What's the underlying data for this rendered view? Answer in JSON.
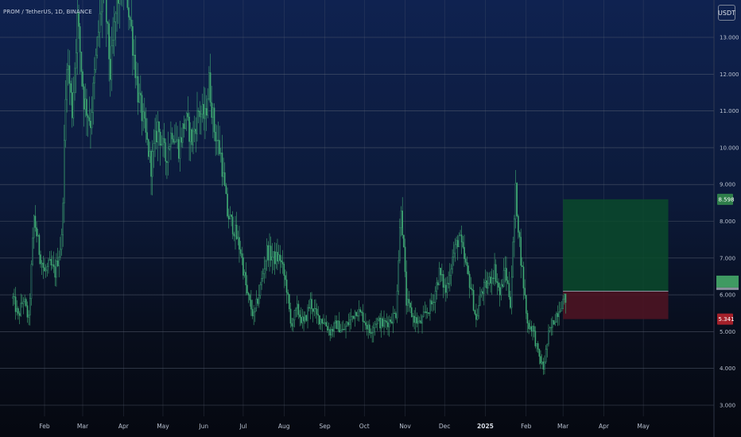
{
  "title": "PROM / TetherUS, 1D, BINANCE",
  "currency_button": "USDT",
  "colors": {
    "candle": "#3fa873",
    "grid": "#5e6677",
    "target_zone": "#0b4a2c",
    "stop_zone": "#4c1422",
    "target_badge": "#2e7d4a",
    "stop_badge": "#a3202a"
  },
  "chart_data": {
    "type": "candlestick",
    "y_axis": {
      "ticks": [
        "3.000",
        "4.000",
        "5.000",
        "6.000",
        "7.000",
        "8.000",
        "9.000",
        "10.000",
        "11.000",
        "12.000",
        "13.000"
      ],
      "range": [
        2.85,
        14.0
      ]
    },
    "x_axis": {
      "ticks": [
        {
          "label": "Feb",
          "date": "2024-02-01"
        },
        {
          "label": "Mar",
          "date": "2024-03-01"
        },
        {
          "label": "Apr",
          "date": "2024-04-01"
        },
        {
          "label": "May",
          "date": "2024-05-01"
        },
        {
          "label": "Jun",
          "date": "2024-06-01"
        },
        {
          "label": "Jul",
          "date": "2024-07-01"
        },
        {
          "label": "Aug",
          "date": "2024-08-01"
        },
        {
          "label": "Sep",
          "date": "2024-09-01"
        },
        {
          "label": "Oct",
          "date": "2024-10-01"
        },
        {
          "label": "Nov",
          "date": "2024-11-01"
        },
        {
          "label": "Dec",
          "date": "2024-12-01"
        },
        {
          "label": "2025",
          "date": "2025-01-01",
          "bold": true
        },
        {
          "label": "Feb",
          "date": "2025-02-01"
        },
        {
          "label": "Mar",
          "date": "2025-03-01"
        },
        {
          "label": "Apr",
          "date": "2025-04-01"
        },
        {
          "label": "May",
          "date": "2025-05-01"
        }
      ]
    },
    "price_path": [
      [
        "2024-01-08",
        5.9
      ],
      [
        "2024-01-12",
        5.4
      ],
      [
        "2024-01-16",
        5.9
      ],
      [
        "2024-01-20",
        5.3
      ],
      [
        "2024-01-24",
        8.1
      ],
      [
        "2024-01-28",
        7.2
      ],
      [
        "2024-02-01",
        6.6
      ],
      [
        "2024-02-05",
        6.8
      ],
      [
        "2024-02-09",
        6.6
      ],
      [
        "2024-02-14",
        7.5
      ],
      [
        "2024-02-18",
        12.5
      ],
      [
        "2024-02-22",
        11.0
      ],
      [
        "2024-02-26",
        13.5
      ],
      [
        "2024-03-02",
        11.3
      ],
      [
        "2024-03-07",
        10.7
      ],
      [
        "2024-03-12",
        12.8
      ],
      [
        "2024-03-17",
        14.5
      ],
      [
        "2024-03-22",
        12.0
      ],
      [
        "2024-03-27",
        14.0
      ],
      [
        "2024-04-02",
        14.6
      ],
      [
        "2024-04-07",
        13.2
      ],
      [
        "2024-04-12",
        11.5
      ],
      [
        "2024-04-17",
        10.5
      ],
      [
        "2024-04-22",
        9.5
      ],
      [
        "2024-04-27",
        10.6
      ],
      [
        "2024-05-03",
        9.7
      ],
      [
        "2024-05-08",
        10.5
      ],
      [
        "2024-05-13",
        10.0
      ],
      [
        "2024-05-18",
        10.8
      ],
      [
        "2024-05-23",
        10.2
      ],
      [
        "2024-05-28",
        11.0
      ],
      [
        "2024-06-02",
        10.8
      ],
      [
        "2024-06-05",
        11.8
      ],
      [
        "2024-06-09",
        10.5
      ],
      [
        "2024-06-14",
        9.8
      ],
      [
        "2024-06-19",
        8.2
      ],
      [
        "2024-06-24",
        7.8
      ],
      [
        "2024-06-29",
        7.2
      ],
      [
        "2024-07-04",
        6.0
      ],
      [
        "2024-07-09",
        5.4
      ],
      [
        "2024-07-14",
        6.2
      ],
      [
        "2024-07-19",
        7.2
      ],
      [
        "2024-07-24",
        7.0
      ],
      [
        "2024-07-29",
        7.0
      ],
      [
        "2024-08-03",
        6.2
      ],
      [
        "2024-08-06",
        5.2
      ],
      [
        "2024-08-11",
        5.6
      ],
      [
        "2024-08-16",
        5.2
      ],
      [
        "2024-08-21",
        5.8
      ],
      [
        "2024-08-26",
        5.4
      ],
      [
        "2024-08-31",
        5.3
      ],
      [
        "2024-09-05",
        5.0
      ],
      [
        "2024-09-10",
        5.2
      ],
      [
        "2024-09-15",
        5.0
      ],
      [
        "2024-09-20",
        5.3
      ],
      [
        "2024-09-25",
        5.6
      ],
      [
        "2024-09-30",
        5.4
      ],
      [
        "2024-10-05",
        5.0
      ],
      [
        "2024-10-10",
        5.3
      ],
      [
        "2024-10-15",
        5.2
      ],
      [
        "2024-10-20",
        5.3
      ],
      [
        "2024-10-25",
        5.5
      ],
      [
        "2024-10-29",
        8.5
      ],
      [
        "2024-11-02",
        5.8
      ],
      [
        "2024-11-07",
        5.4
      ],
      [
        "2024-11-12",
        5.2
      ],
      [
        "2024-11-17",
        5.5
      ],
      [
        "2024-11-22",
        5.8
      ],
      [
        "2024-11-27",
        6.6
      ],
      [
        "2024-12-02",
        6.1
      ],
      [
        "2024-12-07",
        7.0
      ],
      [
        "2024-12-12",
        7.6
      ],
      [
        "2024-12-17",
        6.8
      ],
      [
        "2024-12-21",
        6.2
      ],
      [
        "2024-12-25",
        5.3
      ],
      [
        "2024-12-29",
        6.1
      ],
      [
        "2025-01-03",
        6.3
      ],
      [
        "2025-01-08",
        6.7
      ],
      [
        "2025-01-12",
        6.0
      ],
      [
        "2025-01-16",
        6.7
      ],
      [
        "2025-01-20",
        5.8
      ],
      [
        "2025-01-24",
        8.8
      ],
      [
        "2025-01-28",
        7.0
      ],
      [
        "2025-02-02",
        5.2
      ],
      [
        "2025-02-06",
        5.1
      ],
      [
        "2025-02-10",
        4.4
      ],
      [
        "2025-02-14",
        4.0
      ],
      [
        "2025-02-18",
        4.9
      ],
      [
        "2025-02-23",
        5.4
      ],
      [
        "2025-02-28",
        5.8
      ],
      [
        "2025-03-03",
        5.9
      ]
    ],
    "position_tool": {
      "entry": 6.1,
      "target": 8.598,
      "stop": 5.341,
      "start_date": "2025-03-01",
      "end_date": "2025-05-20"
    },
    "price_labels": [
      {
        "value": 8.598,
        "text": "8.598",
        "kind": "target"
      },
      {
        "value": 5.341,
        "text": "5.341",
        "kind": "stop"
      }
    ]
  }
}
